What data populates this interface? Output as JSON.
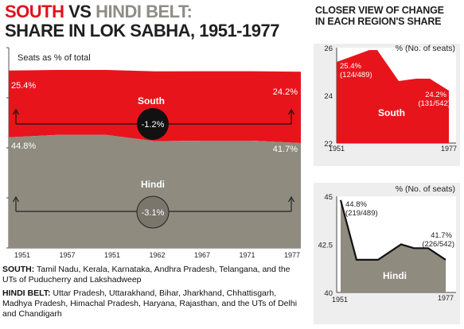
{
  "title": {
    "word1": "SOUTH",
    "word2": "VS",
    "word3": "HINDI BELT:",
    "line2": "SHARE IN LOK SABHA, 1951-1977"
  },
  "colors": {
    "south": "#e8141c",
    "hindi": "#8f8b7f",
    "accent_red": "#e0111b"
  },
  "main_chart": {
    "ylabel": "Seats as % of total",
    "south_label": "South",
    "hindi_label": "Hindi",
    "south_change": "-1.2%",
    "hindi_change": "-3.1%",
    "south_start": "25.4%",
    "south_end": "24.2%",
    "hindi_start": "44.8%",
    "hindi_end": "41.7%",
    "x_ticks": [
      "1951",
      "1957",
      "1951",
      "1962",
      "1967",
      "1971",
      "1977"
    ]
  },
  "right_title": {
    "line1": "CLOSER VIEW OF CHANGE",
    "line2": "IN EACH REGION'S SHARE"
  },
  "south_detail": {
    "unit": "% (No. of seats)",
    "y_ticks": [
      "26",
      "24",
      "22"
    ],
    "x_start": "1951",
    "x_end": "1977",
    "start_pct": "25.4%",
    "start_seats": "(124/489)",
    "end_pct": "24.2%",
    "end_seats": "(131/542)",
    "label": "South"
  },
  "hindi_detail": {
    "unit": "% (No. of seats)",
    "y_ticks": [
      "45",
      "42.5",
      "40"
    ],
    "x_start": "1951",
    "x_end": "1977",
    "start_pct": "44.8%",
    "start_seats": "(219/489)",
    "end_pct": "41.7%",
    "end_seats": "(226/542)",
    "label": "Hindi"
  },
  "chart_data": [
    {
      "type": "area",
      "title": "SHARE IN LOK SABHA, 1951-1977",
      "ylabel": "Seats as % of total",
      "categories": [
        "1951",
        "1957",
        "1951",
        "1962",
        "1967",
        "1971",
        "1977"
      ],
      "series": [
        {
          "name": "South",
          "values": [
            25.4,
            25.9,
            25.9,
            24.6,
            24.7,
            24.7,
            24.2
          ]
        },
        {
          "name": "Hindi",
          "values": [
            44.8,
            41.7,
            41.7,
            42.5,
            42.3,
            42.3,
            41.7
          ]
        }
      ]
    },
    {
      "type": "area",
      "title": "CLOSER VIEW OF CHANGE IN EACH REGION'S SHARE",
      "ylabel": "% (No. of seats)",
      "categories": [
        "1951",
        "1957",
        "1951",
        "1962",
        "1967",
        "1971",
        "1977"
      ],
      "series": [
        {
          "name": "South",
          "values": [
            25.4,
            25.9,
            25.9,
            24.6,
            24.7,
            24.7,
            24.2
          ]
        }
      ],
      "ylim": [
        22,
        26
      ]
    },
    {
      "type": "area",
      "ylabel": "% (No. of seats)",
      "categories": [
        "1951",
        "1957",
        "1951",
        "1962",
        "1967",
        "1971",
        "1977"
      ],
      "series": [
        {
          "name": "Hindi",
          "values": [
            44.8,
            41.7,
            41.7,
            42.5,
            42.3,
            42.3,
            41.7
          ]
        }
      ],
      "ylim": [
        40,
        45
      ]
    }
  ],
  "notes": {
    "south_label": "SOUTH:",
    "south_text": "Tamil Nadu, Kerala, Karnataka, Andhra Pradesh, Telangana, and the UTs of Puducherry and Lakshadweep",
    "hindi_label": "HINDI BELT:",
    "hindi_text": "Uttar Pradesh, Uttarakhand, Bihar, Jharkhand, Chhattisgarh, Madhya Pradesh, Himachal Pradesh, Haryana, Rajasthan, and the UTs of Delhi and Chandigarh"
  }
}
